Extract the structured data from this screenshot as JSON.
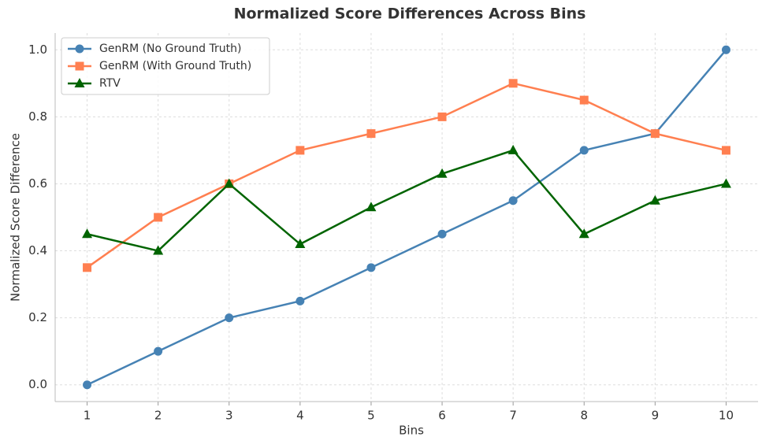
{
  "chart_data": {
    "type": "line",
    "title": "Normalized Score Differences Across Bins",
    "xlabel": "Bins",
    "ylabel": "Normalized Score Difference",
    "x": [
      1,
      2,
      3,
      4,
      5,
      6,
      7,
      8,
      9,
      10
    ],
    "series": [
      {
        "name": "GenRM (No Ground Truth)",
        "color": "#4682b4",
        "marker": "circle",
        "values": [
          0,
          0.1,
          0.2,
          0.25,
          0.35,
          0.45,
          0.55,
          0.7,
          0.75,
          1.0
        ]
      },
      {
        "name": "GenRM (With Ground Truth)",
        "color": "#ff7f50",
        "marker": "square",
        "values": [
          0.35,
          0.5,
          0.6,
          0.7,
          0.75,
          0.8,
          0.9,
          0.85,
          0.75,
          0.7
        ]
      },
      {
        "name": "RTV",
        "color": "#006400",
        "marker": "triangle",
        "values": [
          0.45,
          0.4,
          0.6,
          0.42,
          0.53,
          0.63,
          0.7,
          0.45,
          0.55,
          0.6
        ]
      }
    ],
    "xlim": [
      0.55,
      10.45
    ],
    "xticks": [
      1,
      2,
      3,
      4,
      5,
      6,
      7,
      8,
      9,
      10
    ],
    "ylim": [
      -0.05,
      1.05
    ],
    "yticks": [
      {
        "value": 0,
        "label": "0.0"
      },
      0.2,
      0.4,
      0.6,
      0.8,
      {
        "value": 1,
        "label": "1.0"
      }
    ],
    "grid": true,
    "legend": "upper left"
  }
}
